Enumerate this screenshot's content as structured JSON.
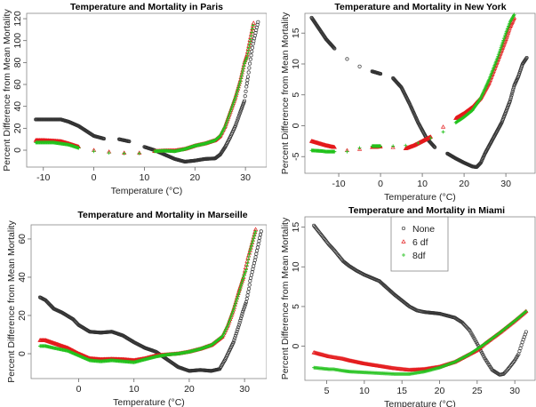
{
  "chart_data": [
    {
      "type": "scatter",
      "title": "Temperature and Mortality in Paris",
      "xlabel": "Temperature (°C)",
      "ylabel": "Percent Difference from Mean Mortality",
      "xlim": [
        -13.3,
        34.2
      ],
      "ylim": [
        -15.4,
        124.9
      ],
      "xticks": [
        -10,
        0,
        10,
        20,
        30
      ],
      "yticks": [
        0,
        20,
        40,
        60,
        80,
        100,
        120
      ],
      "series": [
        {
          "key": "none",
          "marker": "circle",
          "color": "#000000",
          "x": [
            -11.5,
            -10,
            -8,
            -6.5,
            -5,
            -3,
            -1,
            0,
            2,
            5,
            7,
            10,
            12,
            14,
            16,
            18,
            20,
            22,
            24,
            25,
            26,
            27,
            28,
            29,
            29.8,
            30.2,
            30.5,
            31,
            31.5,
            32.5
          ],
          "y": [
            28,
            28,
            28,
            28,
            26,
            22,
            16,
            13,
            10.5,
            10,
            8,
            3,
            0,
            -4,
            -8,
            -10.5,
            -9.5,
            -8,
            -7.5,
            -4,
            3,
            12,
            22,
            35,
            45,
            58,
            67,
            83,
            97,
            117
          ]
        },
        {
          "key": "df6",
          "marker": "triangle",
          "color": "#e41a1c",
          "x": [
            -11.5,
            -10,
            -8,
            -6.5,
            -5,
            -3,
            0,
            3,
            6,
            9,
            12,
            14,
            16,
            18,
            20,
            22,
            24,
            25,
            26,
            27,
            28,
            29,
            29.8,
            30.3,
            31,
            31.6
          ],
          "y": [
            9,
            9,
            8.5,
            8,
            6,
            3,
            0,
            -1.5,
            -2.5,
            -2.5,
            -1,
            -0.5,
            -0.5,
            1,
            4,
            6,
            9,
            13,
            22,
            35,
            48,
            64,
            80,
            87,
            103,
            116
          ]
        },
        {
          "key": "df8",
          "marker": "plus",
          "color": "#22c21c",
          "x": [
            -11.5,
            -10,
            -8,
            -6.5,
            -5,
            -3,
            0,
            3,
            6,
            9,
            12,
            14,
            16,
            18,
            20,
            22,
            24,
            25,
            26,
            27,
            28,
            29,
            29.8,
            30.3,
            31,
            31.5
          ],
          "y": [
            7,
            7,
            7,
            6,
            5,
            2,
            -1,
            -2.5,
            -3,
            -3,
            -1,
            -0.5,
            -1,
            1,
            4,
            6,
            9,
            13,
            22,
            35,
            48,
            63,
            79,
            85,
            101,
            114
          ]
        }
      ]
    },
    {
      "type": "scatter",
      "title": "Temperature and Mortality in New York",
      "xlabel": "Temperature (°C)",
      "ylabel": "Percent Difference from Mean Mortality",
      "xlim": [
        -18.1,
        37.0
      ],
      "ylim": [
        -7.7,
        18.2
      ],
      "xticks": [
        -10,
        0,
        10,
        20,
        30
      ],
      "yticks": [
        -5,
        0,
        5,
        10,
        15
      ],
      "series": [
        {
          "key": "none",
          "marker": "circle",
          "color": "#000000",
          "x": [
            -16.5,
            -14,
            -13,
            -11,
            -8,
            -5,
            -2,
            0,
            3,
            5,
            7,
            9,
            11,
            13,
            16,
            18,
            20,
            22,
            23,
            24,
            25,
            27,
            29,
            31,
            32,
            33,
            34,
            35
          ],
          "y": [
            17.5,
            15,
            14,
            12.5,
            10.8,
            9.6,
            8.8,
            8.4,
            7.7,
            6.2,
            3.5,
            0.5,
            -2,
            -3.5,
            -4.5,
            -5.3,
            -6,
            -6.6,
            -6.7,
            -6,
            -4.5,
            -2,
            0.5,
            4,
            6.5,
            8,
            10,
            11
          ]
        },
        {
          "key": "df6",
          "marker": "triangle",
          "color": "#e41a1c",
          "x": [
            -16.5,
            -14,
            -13,
            -11,
            -8,
            -5,
            -2,
            0,
            3,
            6,
            8,
            10,
            12,
            15,
            18,
            20,
            22,
            24,
            26,
            28,
            30,
            31,
            32
          ],
          "y": [
            -2.5,
            -3,
            -3.2,
            -3.5,
            -4,
            -3.8,
            -3.5,
            -3.4,
            -3.5,
            -3.7,
            -3.2,
            -2.5,
            -1.8,
            -0.2,
            1.2,
            2,
            3,
            4.5,
            7,
            10.5,
            14,
            16,
            17.5
          ]
        },
        {
          "key": "df8",
          "marker": "plus",
          "color": "#22c21c",
          "x": [
            -16.5,
            -14,
            -13,
            -11,
            -8,
            -5,
            -2,
            0,
            3,
            6,
            9,
            12,
            15,
            18,
            20,
            22,
            24,
            26,
            28,
            30,
            31,
            32
          ],
          "y": [
            -4,
            -4.1,
            -4.2,
            -4.2,
            -4.2,
            -3.6,
            -3.3,
            -3.3,
            -3.3,
            -3.2,
            -2.8,
            -2,
            -1,
            0.5,
            1.4,
            2.5,
            4.5,
            7.5,
            11,
            15,
            16.8,
            18
          ]
        }
      ]
    },
    {
      "type": "scatter",
      "title": "Temperature and Mortality in Marseille",
      "xlabel": "Temperature (°C)",
      "ylabel": "Percent Difference from Mean Mortality",
      "xlim": [
        -8.6,
        34.0
      ],
      "ylim": [
        -13,
        67.4
      ],
      "xticks": [
        0,
        10,
        20,
        30
      ],
      "yticks": [
        0,
        20,
        40,
        60
      ],
      "series": [
        {
          "key": "none",
          "marker": "circle",
          "color": "#000000",
          "x": [
            -7,
            -6,
            -4.5,
            -3,
            -1,
            0,
            2,
            4,
            6,
            8,
            10,
            12,
            14,
            16,
            18,
            20,
            22,
            24,
            25.5,
            26.5,
            28,
            29,
            29.7,
            30.3,
            30.8,
            31,
            32,
            33
          ],
          "y": [
            29.5,
            28,
            23.5,
            21.5,
            18,
            15,
            11.5,
            11,
            11.5,
            9.5,
            6,
            3,
            1,
            -3,
            -7,
            -9,
            -8.5,
            -9,
            -8,
            -3,
            6,
            15,
            22,
            27,
            34,
            38,
            50.5,
            64
          ]
        },
        {
          "key": "df6",
          "marker": "triangle",
          "color": "#e41a1c",
          "x": [
            -7,
            -6,
            -4.5,
            -2,
            0,
            2,
            4,
            6,
            8,
            10,
            12,
            14,
            16,
            18,
            20,
            22,
            24,
            26,
            27,
            28,
            29,
            29.8,
            30.2,
            30.6,
            31,
            32
          ],
          "y": [
            7,
            7,
            5.5,
            3,
            0,
            -2.5,
            -3,
            -2.8,
            -3,
            -3.5,
            -2.5,
            -1,
            -0.5,
            0,
            1,
            2.5,
            4.5,
            9,
            15,
            23,
            33,
            40,
            45,
            50,
            54,
            65
          ]
        },
        {
          "key": "df8",
          "marker": "plus",
          "color": "#22c21c",
          "x": [
            -7,
            -6,
            -4.5,
            -2,
            0,
            2,
            4,
            6,
            8,
            10,
            12,
            14,
            16,
            18,
            20,
            22,
            24,
            26,
            27,
            28,
            29,
            29.8,
            30.3,
            31,
            32
          ],
          "y": [
            4,
            4,
            3,
            1.5,
            -1,
            -3.5,
            -4,
            -3.5,
            -4,
            -4.5,
            -3,
            -1.5,
            -0.5,
            0,
            1,
            2.5,
            4.5,
            9,
            15,
            23,
            32,
            40,
            44,
            54,
            64
          ]
        }
      ]
    },
    {
      "type": "scatter",
      "title": "Temperature and Mortality in Miami",
      "xlabel": "Temperature (°C)",
      "ylabel": "Percent Difference from Mean Mortality",
      "xlim": [
        2.1,
        32.7
      ],
      "ylim": [
        -4.3,
        16.3
      ],
      "xticks": [
        5,
        10,
        15,
        20,
        25,
        30
      ],
      "yticks": [
        0,
        5,
        10,
        15
      ],
      "legend": {
        "position": "top-center",
        "entries": [
          "None",
          "6 df",
          "8df"
        ]
      },
      "series": [
        {
          "key": "none",
          "name": "None",
          "marker": "circle",
          "color": "#000000",
          "x": [
            3.3,
            5.3,
            5.9,
            7.2,
            8,
            9,
            10,
            12,
            14,
            16,
            17,
            18,
            20,
            22,
            23,
            24,
            25,
            26,
            27,
            28,
            28.5,
            29,
            30,
            30.5,
            31,
            31.5
          ],
          "y": [
            15.2,
            12.8,
            12.2,
            10.7,
            10.1,
            9.5,
            9,
            8.2,
            6.5,
            5,
            4.5,
            4.3,
            4.1,
            3.6,
            3,
            2,
            0.3,
            -1.5,
            -3,
            -3.6,
            -3.5,
            -3,
            -1.8,
            -1,
            0.5,
            1.8
          ]
        },
        {
          "key": "df6",
          "name": "6 df",
          "marker": "triangle",
          "color": "#e41a1c",
          "x": [
            3.3,
            5.3,
            5.9,
            7.2,
            8,
            10,
            12,
            14,
            16,
            18,
            20,
            22,
            24,
            25,
            26,
            28,
            30,
            31.5
          ],
          "y": [
            -0.8,
            -1.3,
            -1.4,
            -1.6,
            -1.8,
            -2.2,
            -2.5,
            -2.8,
            -3,
            -2.9,
            -2.6,
            -2,
            -1,
            -0.5,
            0.3,
            1.7,
            3.2,
            4.4
          ]
        },
        {
          "key": "df8",
          "name": "8df",
          "marker": "plus",
          "color": "#22c21c",
          "x": [
            3.3,
            5.3,
            5.9,
            7.2,
            8,
            10,
            12,
            14,
            16,
            18,
            20,
            22,
            24,
            26,
            28,
            30,
            31.5
          ],
          "y": [
            -2.7,
            -2.9,
            -2.9,
            -3.1,
            -3.2,
            -3.3,
            -3.4,
            -3.5,
            -3.5,
            -3.2,
            -2.7,
            -2,
            -1,
            0.3,
            1.7,
            3.2,
            4.4
          ]
        }
      ]
    }
  ]
}
